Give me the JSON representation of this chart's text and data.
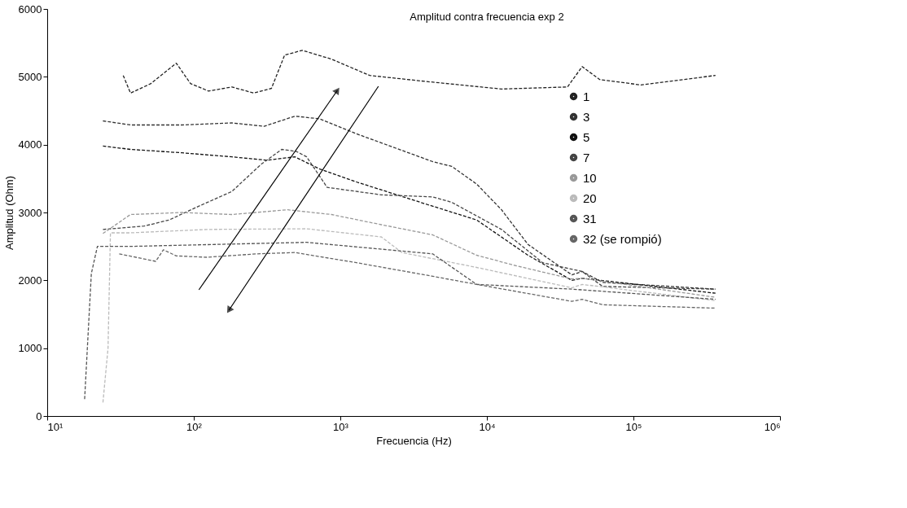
{
  "chart_data": {
    "type": "line",
    "title": "Amplitud contra frecuencia exp 2",
    "xlabel": "Frecuencia (Hz)",
    "ylabel": "Amplitud (Ohm)",
    "log": "x",
    "xlim": [
      10,
      1000000
    ],
    "xticks": [
      {
        "value": 10,
        "label": "10¹"
      },
      {
        "value": 100,
        "label": "10²"
      },
      {
        "value": 1000,
        "label": "10³"
      },
      {
        "value": 10000,
        "label": "10⁴"
      },
      {
        "value": 100000,
        "label": "10⁵"
      },
      {
        "value": 1000000,
        "label": "10⁶"
      }
    ],
    "ylim": [
      0,
      6000
    ],
    "yticks": [
      0,
      1000,
      2000,
      3000,
      4000,
      5000,
      6000
    ],
    "grid": false,
    "legend": "right",
    "marker": "none",
    "line_style": "dashed",
    "series": [
      {
        "name": "1",
        "color": "#222222",
        "x": [
          33,
          37,
          51,
          76,
          95,
          126,
          182,
          257,
          339,
          417,
          550,
          871,
          1585,
          3890,
          12589,
          35481,
          44668,
          58884,
          112202,
          363078
        ],
        "values": [
          5020,
          4760,
          4900,
          5200,
          4900,
          4790,
          4850,
          4760,
          4830,
          5320,
          5390,
          5260,
          5020,
          4930,
          4820,
          4850,
          5150,
          4960,
          4880,
          5020
        ]
      },
      {
        "name": "3",
        "color": "#333333",
        "x": [
          24,
          37,
          83,
          182,
          302,
          490,
          724,
          1288,
          4266,
          5754,
          8511,
          12589,
          19055,
          38019,
          44668,
          61660,
          363078
        ],
        "values": [
          4350,
          4290,
          4290,
          4320,
          4270,
          4420,
          4380,
          4160,
          3750,
          3680,
          3420,
          3040,
          2530,
          2080,
          2130,
          1970,
          1870
        ]
      },
      {
        "name": "5",
        "color": "#111111",
        "x": [
          24,
          37,
          83,
          182,
          316,
          490,
          724,
          1288,
          3890,
          8511,
          19055,
          38019,
          44668,
          363078
        ],
        "values": [
          3980,
          3930,
          3880,
          3820,
          3770,
          3820,
          3640,
          3450,
          3120,
          2890,
          2370,
          2000,
          2030,
          1810
        ]
      },
      {
        "name": "7",
        "color": "#444444",
        "x": [
          24,
          46,
          68,
          105,
          182,
          288,
          398,
          501,
          589,
          813,
          1905,
          4266,
          5754,
          12589,
          23988,
          44668,
          61660,
          363078
        ],
        "values": [
          2750,
          2800,
          2890,
          3080,
          3310,
          3710,
          3930,
          3900,
          3820,
          3370,
          3260,
          3230,
          3150,
          2750,
          2260,
          2130,
          1910,
          1870
        ]
      },
      {
        "name": "10",
        "color": "#999999",
        "x": [
          24,
          37,
          83,
          182,
          437,
          871,
          1905,
          4266,
          8511,
          15488,
          38019,
          44668,
          363078
        ],
        "values": [
          2690,
          2970,
          3000,
          2970,
          3040,
          2970,
          2820,
          2670,
          2370,
          2220,
          2020,
          2030,
          1750
        ]
      },
      {
        "name": "20",
        "color": "#bbbbbb",
        "x": [
          24,
          26,
          27,
          37,
          123,
          589,
          1905,
          2630,
          8511,
          38019,
          44668,
          363078
        ],
        "values": [
          200,
          1000,
          2700,
          2700,
          2750,
          2760,
          2640,
          2410,
          2190,
          1890,
          1940,
          1700
        ]
      },
      {
        "name": "31",
        "color": "#555555",
        "x": [
          18,
          20,
          22,
          37,
          589,
          4266,
          8511,
          38019,
          363078
        ],
        "values": [
          250,
          2100,
          2500,
          2500,
          2560,
          2390,
          1940,
          1870,
          1720
        ]
      },
      {
        "name": "32 (se rompió)",
        "color": "#666666",
        "x": [
          31,
          55,
          62,
          76,
          123,
          269,
          490,
          1288,
          4266,
          8511,
          38019,
          44668,
          61660,
          363078
        ],
        "values": [
          2390,
          2280,
          2450,
          2360,
          2340,
          2390,
          2410,
          2260,
          2060,
          1940,
          1690,
          1720,
          1640,
          1590
        ]
      }
    ]
  }
}
